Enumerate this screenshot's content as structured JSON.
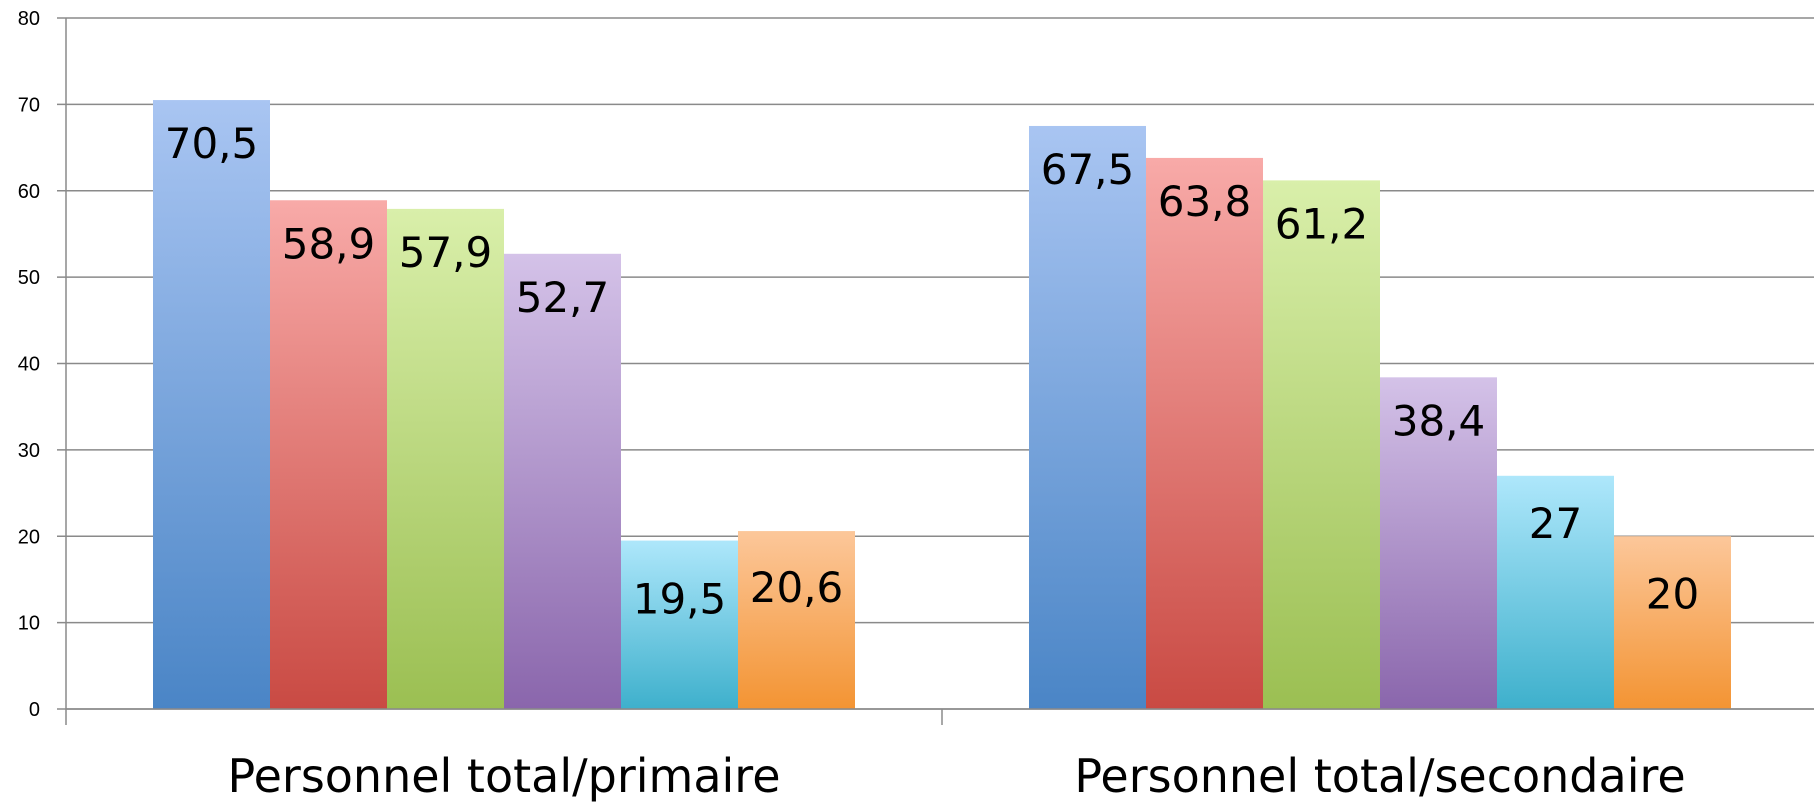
{
  "chart_data": {
    "type": "bar",
    "categories": [
      "Personnel total/primaire",
      "Personnel total/secondaire"
    ],
    "series": [
      {
        "values": [
          70.5,
          67.5
        ],
        "labels": [
          "70,5",
          "67,5"
        ],
        "color_top": "#a9c5f2",
        "color_bottom": "#4a85c6"
      },
      {
        "values": [
          58.9,
          63.8
        ],
        "labels": [
          "58,9",
          "63,8"
        ],
        "color_top": "#f8aaa8",
        "color_bottom": "#c94a43"
      },
      {
        "values": [
          57.9,
          61.2
        ],
        "labels": [
          "57,9",
          "61,2"
        ],
        "color_top": "#d9efaa",
        "color_bottom": "#9bbf52"
      },
      {
        "values": [
          52.7,
          38.4
        ],
        "labels": [
          "52,7",
          "38,4"
        ],
        "color_top": "#d4c2e8",
        "color_bottom": "#8a66ac"
      },
      {
        "values": [
          19.5,
          27
        ],
        "labels": [
          "19,5",
          "27"
        ],
        "color_top": "#aee7fb",
        "color_bottom": "#3eb0cc"
      },
      {
        "values": [
          20.6,
          20
        ],
        "labels": [
          "20,6",
          "20"
        ],
        "color_top": "#fcc79a",
        "color_bottom": "#f39433"
      }
    ],
    "yticks": [
      "0",
      "10",
      "20",
      "30",
      "40",
      "50",
      "60",
      "70",
      "80"
    ],
    "ylim": [
      0,
      80
    ],
    "grid": true,
    "legend": "none"
  }
}
